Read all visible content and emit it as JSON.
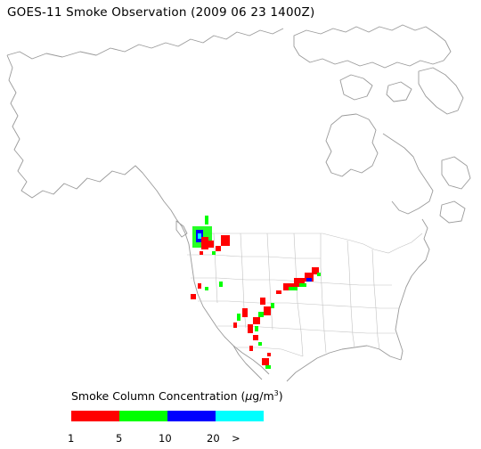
{
  "title": "GOES-11 Smoke Observation (2009 06 23  1400Z)",
  "legend": {
    "title_prefix": "Smoke Column Concentration (",
    "title_mu": "μ",
    "title_unit": "g/m",
    "title_sup": "3",
    "title_suffix": ")",
    "colors": [
      "#ff0000",
      "#00ff00",
      "#0000ff",
      "#00ffff"
    ],
    "ticks": [
      "1",
      "5",
      "10",
      "20",
      ">"
    ]
  },
  "colors": {
    "coast": "#9a9a9a",
    "borders": "#c2c2c2",
    "smoke_low": "#ff0000",
    "smoke_mid": "#00ff00",
    "smoke_high": "#0000ff",
    "smoke_max": "#00ffff"
  }
}
